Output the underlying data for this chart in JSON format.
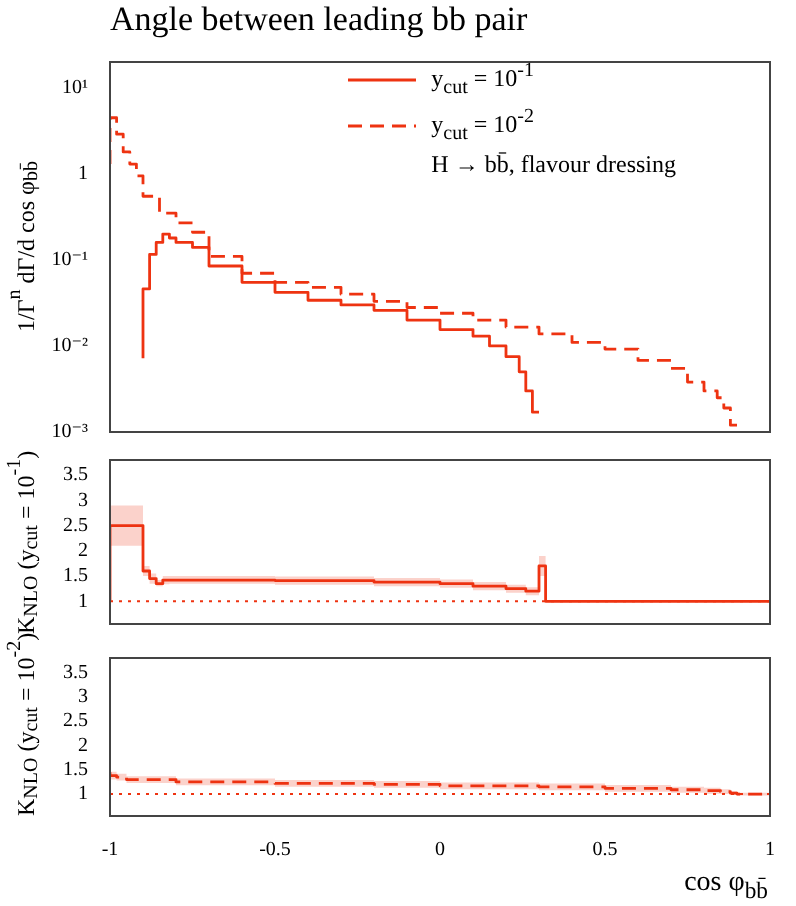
{
  "chart_data": [
    {
      "type": "step",
      "title": "Angle between leading bb pair",
      "ylabel": "1/Γ$^{n}$ dΓ/d cos φ$_{bb̄}$",
      "log": "y",
      "xlim": [
        -1,
        1
      ],
      "ylim": [
        0.001,
        20
      ],
      "yticks": [
        {
          "value": 10,
          "label": "10¹"
        },
        1,
        {
          "value": 0.1,
          "label": "10⁻¹"
        },
        {
          "value": 0.01,
          "label": "10⁻²"
        },
        {
          "value": 0.001,
          "label": "10⁻³"
        }
      ],
      "tick_labels": "y",
      "grid": false,
      "legend": "top right",
      "annotations": [
        "H → bb̄, flavour dressing"
      ],
      "series": [
        {
          "name": "y$_{cut}$ = 10$^{-1}$",
          "color": "#ee3311",
          "line_style": "solid",
          "x": [
            -0.9,
            -0.88,
            -0.86,
            -0.84,
            -0.82,
            -0.8,
            -0.75,
            -0.7,
            -0.6,
            -0.5,
            -0.4,
            -0.3,
            -0.2,
            -0.1,
            0,
            0.1,
            0.15,
            0.2,
            0.24,
            0.26,
            0.28,
            0.3
          ],
          "values": [
            0.0072,
            0.046,
            0.116,
            0.16,
            0.2,
            0.18,
            0.16,
            0.14,
            0.085,
            0.055,
            0.042,
            0.034,
            0.03,
            0.026,
            0.02,
            0.0155,
            0.013,
            0.01,
            0.0075,
            0.005,
            0.003,
            0.0017
          ]
        },
        {
          "name": "y$_{cut}$ = 10$^{-2}$",
          "color": "#ee3311",
          "line_style": "dashed",
          "x": [
            -1,
            -0.98,
            -0.96,
            -0.94,
            -0.92,
            -0.9,
            -0.85,
            -0.8,
            -0.75,
            -0.7,
            -0.6,
            -0.5,
            -0.4,
            -0.3,
            -0.2,
            -0.1,
            0,
            0.1,
            0.2,
            0.3,
            0.4,
            0.5,
            0.6,
            0.7,
            0.75,
            0.8,
            0.84,
            0.86,
            0.88,
            0.9
          ],
          "values": [
            1.3,
            4.5,
            2.9,
            1.8,
            1.3,
            0.95,
            0.55,
            0.35,
            0.27,
            0.21,
            0.11,
            0.07,
            0.055,
            0.048,
            0.04,
            0.033,
            0.028,
            0.024,
            0.02,
            0.0166,
            0.0138,
            0.011,
            0.0092,
            0.0068,
            0.0055,
            0.0038,
            0.003,
            0.0025,
            0.0019,
            0.0012
          ]
        }
      ]
    },
    {
      "type": "step",
      "ylabel": "K$_{NLO}$ (y$_{cut}$ = 10$^{-1}$)",
      "xlim": [
        -1,
        1
      ],
      "ylim": [
        0.55,
        3.8
      ],
      "yticks": [
        1,
        1.5,
        2,
        2.5,
        3,
        3.5
      ],
      "tick_labels": "y",
      "grid": false,
      "ref_lines": [
        {
          "axis": "y",
          "value": 1,
          "color": "#ee3311",
          "line_style": "dotted"
        }
      ],
      "series": [
        {
          "color": "#ee3311",
          "line_style": "solid",
          "x": [
            -1,
            -0.9,
            -0.88,
            -0.86,
            -0.84,
            -0.82,
            -0.5,
            -0.2,
            0,
            0.1,
            0.2,
            0.26,
            0.3,
            0.32,
            0.34,
            1
          ],
          "values": [
            1,
            2.5,
            1.6,
            1.45,
            1.35,
            1.42,
            1.42,
            1.41,
            1.38,
            1.35,
            1.3,
            1.25,
            1.2,
            1.7,
            1,
            1
          ],
          "lower": [
            1,
            2.1,
            1.5,
            1.35,
            1.3,
            1.34,
            1.35,
            1.33,
            1.3,
            1.27,
            1.22,
            1.17,
            1.12,
            1.5,
            1,
            1
          ],
          "upper": [
            1,
            2.9,
            1.7,
            1.55,
            1.42,
            1.5,
            1.5,
            1.49,
            1.46,
            1.43,
            1.38,
            1.33,
            1.28,
            1.9,
            1,
            1
          ]
        }
      ]
    },
    {
      "type": "step",
      "ylabel": "K$_{NLO}$ (y$_{cut}$ = 10$^{-2}$)",
      "xlabel": "cos φ$_{bb̄}$",
      "xlim": [
        -1,
        1
      ],
      "ylim": [
        0.55,
        3.8
      ],
      "xticks": [
        -1,
        -0.5,
        0,
        0.5,
        1
      ],
      "yticks": [
        1,
        1.5,
        2,
        2.5,
        3,
        3.5
      ],
      "grid": false,
      "ref_lines": [
        {
          "axis": "y",
          "value": 1,
          "color": "#ee3311",
          "line_style": "dotted"
        }
      ],
      "series": [
        {
          "color": "#ee3311",
          "line_style": "dashed",
          "x": [
            -1,
            -0.98,
            -0.95,
            -0.8,
            -0.5,
            -0.2,
            0,
            0.3,
            0.5,
            0.7,
            0.8,
            0.85,
            0.88,
            0.9,
            0.92,
            1
          ],
          "values": [
            1.45,
            1.38,
            1.35,
            1.3,
            1.25,
            1.22,
            1.2,
            1.17,
            1.15,
            1.12,
            1.09,
            1.07,
            1.05,
            1.02,
            1,
            1
          ],
          "lower": [
            1.3,
            1.3,
            1.28,
            1.23,
            1.18,
            1.15,
            1.13,
            1.1,
            1.08,
            1.05,
            1.03,
            1.01,
            1,
            0.98,
            0.97,
            0.97
          ],
          "upper": [
            1.6,
            1.46,
            1.42,
            1.37,
            1.32,
            1.29,
            1.27,
            1.24,
            1.22,
            1.19,
            1.15,
            1.13,
            1.1,
            1.06,
            1.03,
            1.03
          ]
        }
      ]
    }
  ]
}
